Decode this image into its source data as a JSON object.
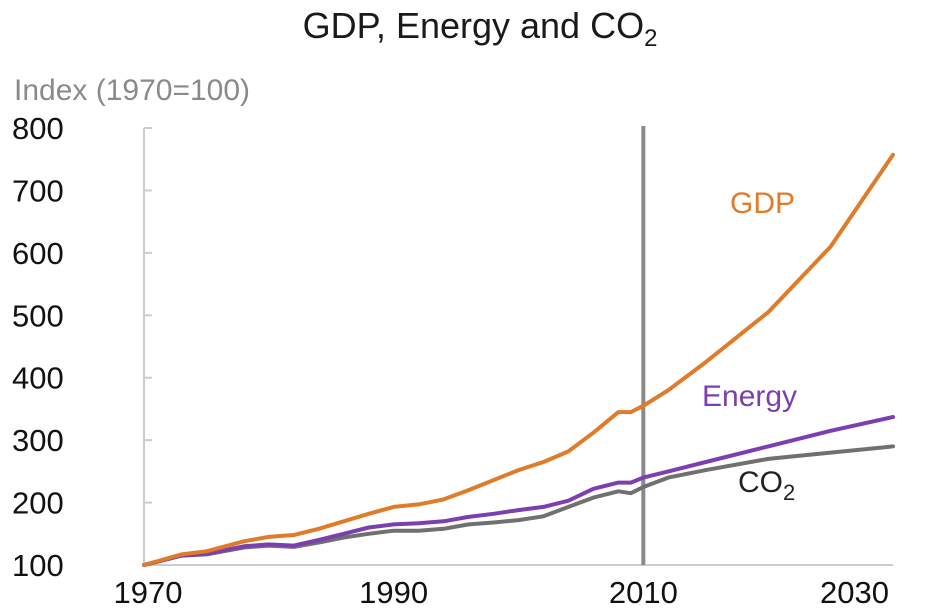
{
  "chart_data": {
    "type": "line",
    "title": "GDP, Energy and CO",
    "title_subscript": "2",
    "ylabel": "Index (1970=100)",
    "xlabel": "",
    "xlim": [
      1970,
      2030
    ],
    "ylim": [
      100,
      800
    ],
    "x_ticks": [
      "1970",
      "1990",
      "2010",
      "2030"
    ],
    "y_ticks": [
      "100",
      "200",
      "300",
      "400",
      "500",
      "600",
      "700",
      "800"
    ],
    "marker_year": 2010,
    "grid": false,
    "legend": "inline",
    "x": [
      1970,
      1973,
      1975,
      1978,
      1980,
      1982,
      1984,
      1986,
      1988,
      1990,
      1992,
      1994,
      1996,
      1998,
      2000,
      2002,
      2004,
      2006,
      2008,
      2009,
      2010,
      2012,
      2015,
      2020,
      2025,
      2030
    ],
    "series": [
      {
        "name": "GDP",
        "color": "#e07b2a",
        "values": [
          100,
          117,
          122,
          138,
          145,
          148,
          158,
          170,
          182,
          193,
          197,
          205,
          220,
          236,
          252,
          265,
          282,
          312,
          345,
          345,
          355,
          380,
          425,
          505,
          610,
          757
        ]
      },
      {
        "name": "Energy",
        "color": "#7b3fb0",
        "values": [
          100,
          115,
          118,
          130,
          133,
          131,
          140,
          150,
          160,
          165,
          167,
          170,
          177,
          182,
          188,
          193,
          203,
          222,
          232,
          232,
          240,
          250,
          265,
          290,
          315,
          337
        ]
      },
      {
        "name": "CO",
        "name_subscript": "2",
        "color": "#707070",
        "values": [
          100,
          115,
          117,
          128,
          131,
          129,
          136,
          144,
          150,
          155,
          155,
          158,
          165,
          168,
          172,
          178,
          193,
          208,
          218,
          215,
          225,
          240,
          252,
          270,
          280,
          290
        ]
      }
    ]
  }
}
